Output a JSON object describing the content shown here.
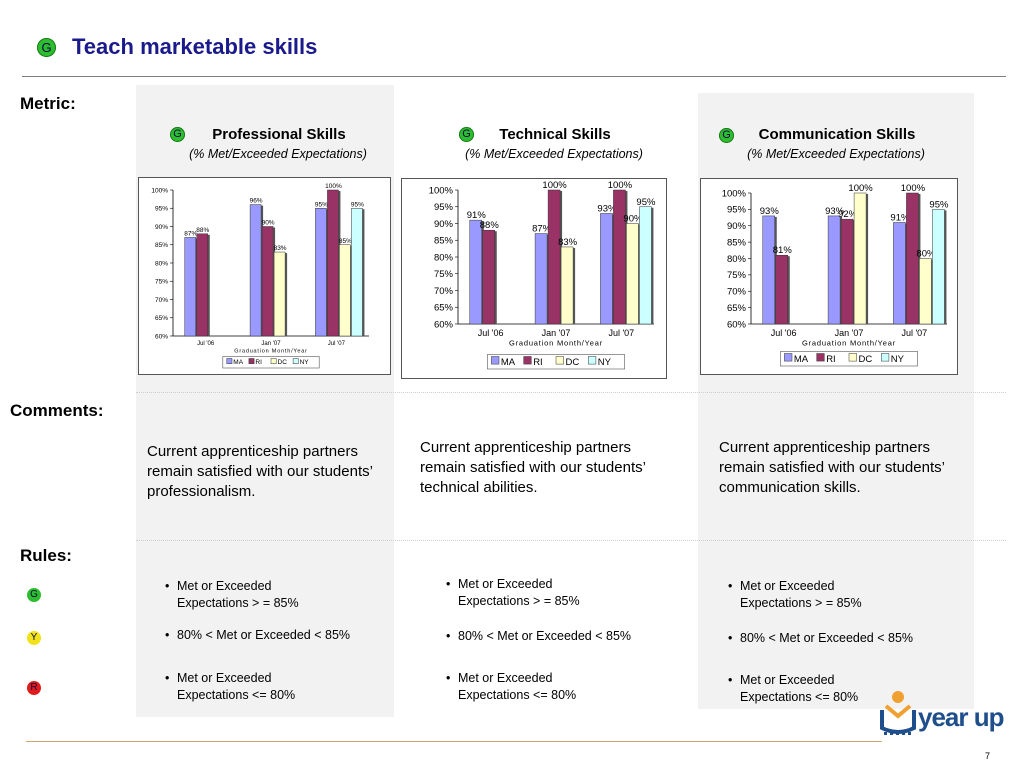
{
  "title": "Teach marketable skills",
  "status_letter": "G",
  "row_labels": {
    "metric": "Metric:",
    "comments": "Comments:",
    "rules": "Rules:"
  },
  "rule_indicators": [
    {
      "letter": "G",
      "color": "#2ebd2e"
    },
    {
      "letter": "Y",
      "color": "#f2e21a"
    },
    {
      "letter": "R",
      "color": "#e01b1b"
    }
  ],
  "columns": [
    {
      "header": "Professional Skills",
      "subheader": "(% Met/Exceeded Expectations)",
      "comment": "Current apprenticeship partners remain satisfied with our students’ professionalism.",
      "rules": [
        "Met or Exceeded Expectations > = 85%",
        "80% < Met or Exceeded < 85%",
        "Met or Exceeded Expectations  <= 80%"
      ]
    },
    {
      "header": "Technical Skills",
      "subheader": "(% Met/Exceeded Expectations)",
      "comment": "Current apprenticeship partners remain satisfied with our students’ technical abilities.",
      "rules": [
        "Met or Exceeded Expectations > = 85%",
        "80% < Met or Exceeded < 85%",
        "Met or Exceeded Expectations  <= 80%"
      ]
    },
    {
      "header": "Communication Skills",
      "subheader": "(% Met/Exceeded Expectations)",
      "comment": "Current apprenticeship partners remain satisfied with our students’ communication skills.",
      "rules": [
        "Met or Exceeded Expectations > = 85%",
        "80% < Met or Exceeded < 85%",
        "Met or Exceeded Expectations  <= 80%"
      ]
    }
  ],
  "logo_text": "year up",
  "page_number": "7",
  "chart_data": [
    {
      "type": "bar",
      "categories": [
        "Jul '06",
        "Jan '07",
        "Jul '07"
      ],
      "xlabel": "Graduation Month/Year",
      "ylim": [
        60,
        100
      ],
      "yticks": [
        "60%",
        "65%",
        "70%",
        "75%",
        "80%",
        "85%",
        "90%",
        "95%",
        "100%"
      ],
      "series": [
        {
          "name": "MA",
          "color": "#9999ff",
          "values": [
            87,
            96,
            95
          ]
        },
        {
          "name": "RI",
          "color": "#993366",
          "values": [
            88,
            90,
            100
          ]
        },
        {
          "name": "DC",
          "color": "#ffffcc",
          "values": [
            null,
            83,
            85
          ]
        },
        {
          "name": "NY",
          "color": "#ccffff",
          "values": [
            null,
            null,
            95
          ]
        }
      ]
    },
    {
      "type": "bar",
      "categories": [
        "Jul '06",
        "Jan '07",
        "Jul '07"
      ],
      "xlabel": "Graduation Month/Year",
      "ylim": [
        60,
        100
      ],
      "yticks": [
        "60%",
        "65%",
        "70%",
        "75%",
        "80%",
        "85%",
        "90%",
        "95%",
        "100%"
      ],
      "series": [
        {
          "name": "MA",
          "color": "#9999ff",
          "values": [
            91,
            87,
            93
          ]
        },
        {
          "name": "RI",
          "color": "#993366",
          "values": [
            88,
            100,
            100
          ]
        },
        {
          "name": "DC",
          "color": "#ffffcc",
          "values": [
            null,
            83,
            90
          ]
        },
        {
          "name": "NY",
          "color": "#ccffff",
          "values": [
            null,
            null,
            95
          ]
        }
      ]
    },
    {
      "type": "bar",
      "categories": [
        "Jul '06",
        "Jan '07",
        "Jul '07"
      ],
      "xlabel": "Graduation Month/Year",
      "ylim": [
        60,
        100
      ],
      "yticks": [
        "60%",
        "65%",
        "70%",
        "75%",
        "80%",
        "85%",
        "90%",
        "95%",
        "100%"
      ],
      "series": [
        {
          "name": "MA",
          "color": "#9999ff",
          "values": [
            93,
            93,
            91
          ]
        },
        {
          "name": "RI",
          "color": "#993366",
          "values": [
            81,
            92,
            100
          ]
        },
        {
          "name": "DC",
          "color": "#ffffcc",
          "values": [
            null,
            100,
            80
          ]
        },
        {
          "name": "NY",
          "color": "#ccffff",
          "values": [
            null,
            null,
            95
          ]
        }
      ]
    }
  ]
}
